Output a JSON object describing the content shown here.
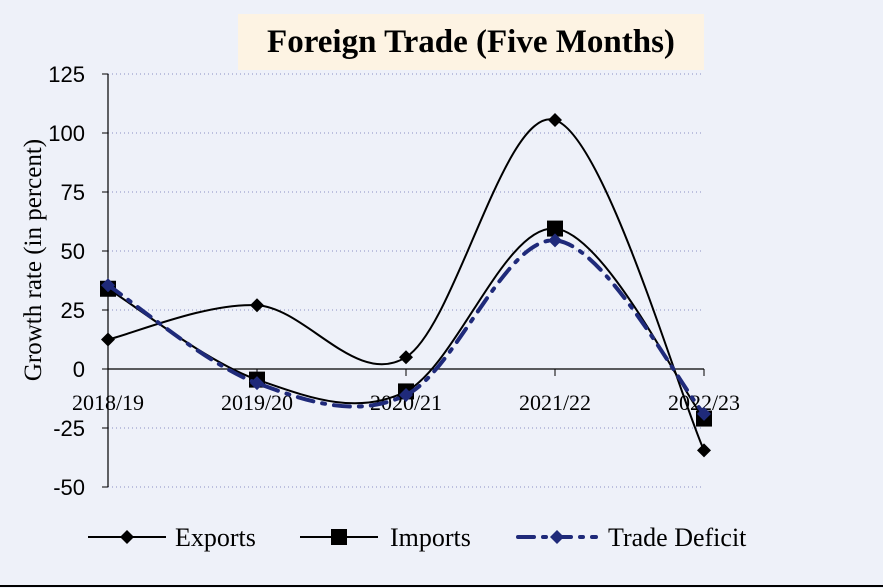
{
  "chart_data": {
    "type": "line",
    "title": "Foreign Trade (Five Months)",
    "xlabel": "",
    "ylabel": "Growth rate (in percent)",
    "categories": [
      "2018/19",
      "2019/20",
      "2020/21",
      "2021/22",
      "2022/23"
    ],
    "y_ticks": [
      "125",
      "100",
      "75",
      "50",
      "25",
      "0",
      "-25",
      "-50"
    ],
    "ylim": [
      -50,
      125
    ],
    "grid": "horizontal dotted",
    "legend_position": "bottom",
    "series": [
      {
        "name": "Exports",
        "values": [
          12.5,
          27.0,
          5.0,
          105.5,
          -34.5
        ],
        "marker": "diamond",
        "color": "#000000",
        "dash": "solid"
      },
      {
        "name": "Imports",
        "values": [
          34.0,
          -4.5,
          -9.5,
          59.5,
          -21.0
        ],
        "marker": "square",
        "color": "#000000",
        "dash": "solid"
      },
      {
        "name": "Trade Deficit",
        "values": [
          35.5,
          -6.0,
          -11.0,
          54.5,
          -19.0
        ],
        "marker": "diamond",
        "color": "#1f2a7a",
        "dash": "dashdot"
      }
    ]
  }
}
